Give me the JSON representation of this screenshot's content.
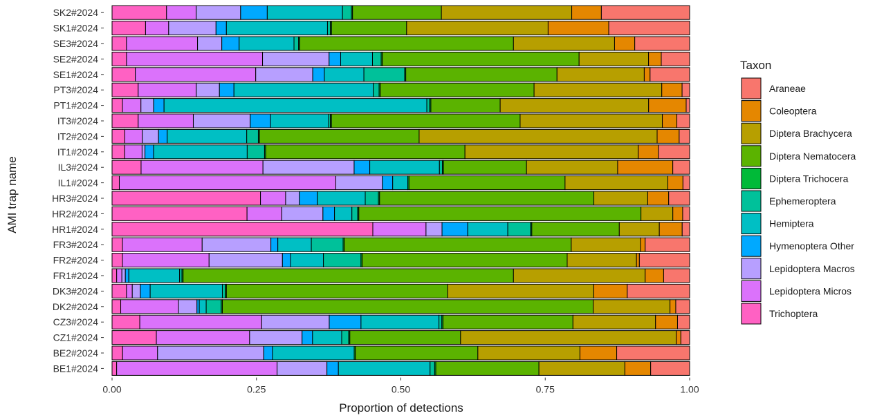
{
  "chart_data": {
    "type": "bar",
    "orientation": "horizontal",
    "stacked": true,
    "xlabel": "Proportion of detections",
    "ylabel": "AMI trap name",
    "xlim": [
      0,
      1
    ],
    "x_ticks": [
      "0.00",
      "0.25",
      "0.50",
      "0.75",
      "1.00"
    ],
    "grid": false,
    "legend": {
      "title": "Taxon",
      "position": "right"
    },
    "categories": [
      "SK2#2024",
      "SK1#2024",
      "SE3#2024",
      "SE2#2024",
      "SE1#2024",
      "PT3#2024",
      "PT1#2024",
      "IT3#2024",
      "IT2#2024",
      "IT1#2024",
      "IL3#2024",
      "IL1#2024",
      "HR3#2024",
      "HR2#2024",
      "HR1#2024",
      "FR3#2024",
      "FR2#2024",
      "FR1#2024",
      "DK3#2024",
      "DK2#2024",
      "CZ3#2024",
      "CZ1#2024",
      "BE2#2024",
      "BE1#2024"
    ],
    "series": [
      {
        "name": "Trichoptera",
        "color": "#FF61C3",
        "values": [
          0.092,
          0.058,
          0.025,
          0.025,
          0.04,
          0.045,
          0.018,
          0.045,
          0.022,
          0.022,
          0.05,
          0.012,
          0.248,
          0.233,
          0.456,
          0.018,
          0.018,
          0.008,
          0.025,
          0.015,
          0.048,
          0.076,
          0.018,
          0.008
        ]
      },
      {
        "name": "Lepidoptera Micros",
        "color": "#DB72FB",
        "values": [
          0.05,
          0.04,
          0.123,
          0.235,
          0.207,
          0.1,
          0.032,
          0.095,
          0.03,
          0.03,
          0.21,
          0.358,
          0.042,
          0.06,
          0.093,
          0.138,
          0.15,
          0.009,
          0.01,
          0.1,
          0.211,
          0.16,
          0.06,
          0.28
        ]
      },
      {
        "name": "Lepidoptera Macros",
        "color": "#B79FFF",
        "values": [
          0.075,
          0.082,
          0.042,
          0.115,
          0.098,
          0.04,
          0.022,
          0.098,
          0.028,
          0.005,
          0.157,
          0.077,
          0.023,
          0.071,
          0.028,
          0.119,
          0.127,
          0.006,
          0.014,
          0.032,
          0.117,
          0.09,
          0.182,
          0.087
        ]
      },
      {
        "name": "Hymenoptera Other",
        "color": "#00A9FF",
        "values": [
          0.045,
          0.018,
          0.03,
          0.02,
          0.02,
          0.025,
          0.018,
          0.035,
          0.015,
          0.015,
          0.027,
          0.017,
          0.03,
          0.02,
          0.045,
          0.012,
          0.014,
          0.006,
          0.017,
          0.004,
          0.055,
          0.018,
          0.015,
          0.02
        ]
      },
      {
        "name": "Hemiptera",
        "color": "#00BFC4",
        "values": [
          0.127,
          0.175,
          0.095,
          0.055,
          0.068,
          0.24,
          0.455,
          0.1,
          0.137,
          0.162,
          0.12,
          0.025,
          0.08,
          0.03,
          0.07,
          0.058,
          0.057,
          0.088,
          0.125,
          0.012,
          0.135,
          0.05,
          0.14,
          0.16
        ]
      },
      {
        "name": "Ephemeroptera",
        "color": "#00C19A",
        "values": [
          0.015,
          0.005,
          0.008,
          0.015,
          0.07,
          0.01,
          0.005,
          0.003,
          0.02,
          0.03,
          0.005,
          0.0,
          0.022,
          0.01,
          0.04,
          0.055,
          0.065,
          0.004,
          0.005,
          0.026,
          0.005,
          0.012,
          0.0,
          0.008
        ]
      },
      {
        "name": "Diptera Trichocera",
        "color": "#00BA38",
        "values": [
          0.002,
          0.002,
          0.002,
          0.002,
          0.002,
          0.002,
          0.002,
          0.002,
          0.002,
          0.002,
          0.002,
          0.002,
          0.002,
          0.002,
          0.002,
          0.002,
          0.002,
          0.002,
          0.002,
          0.002,
          0.002,
          0.002,
          0.002,
          0.002
        ]
      },
      {
        "name": "Diptera Nematocera",
        "color": "#5BB300",
        "values": [
          0.15,
          0.13,
          0.37,
          0.34,
          0.26,
          0.265,
          0.12,
          0.325,
          0.275,
          0.345,
          0.143,
          0.258,
          0.358,
          0.487,
          0.153,
          0.393,
          0.355,
          0.572,
          0.383,
          0.642,
          0.225,
          0.19,
          0.21,
          0.18
        ]
      },
      {
        "name": "Diptera Brachycera",
        "color": "#B79F00",
        "values": [
          0.22,
          0.245,
          0.175,
          0.12,
          0.15,
          0.22,
          0.257,
          0.245,
          0.41,
          0.3,
          0.157,
          0.17,
          0.09,
          0.055,
          0.07,
          0.12,
          0.12,
          0.228,
          0.253,
          0.133,
          0.143,
          0.37,
          0.175,
          0.15
        ]
      },
      {
        "name": "Coleoptera",
        "color": "#E58700",
        "values": [
          0.05,
          0.105,
          0.035,
          0.022,
          0.01,
          0.035,
          0.065,
          0.025,
          0.038,
          0.035,
          0.095,
          0.025,
          0.035,
          0.017,
          0.04,
          0.008,
          0.005,
          0.032,
          0.058,
          0.01,
          0.038,
          0.008,
          0.063,
          0.045
        ]
      },
      {
        "name": "Araneae",
        "color": "#F8766D",
        "values": [
          0.149,
          0.14,
          0.095,
          0.049,
          0.068,
          0.013,
          0.006,
          0.022,
          0.018,
          0.054,
          0.029,
          0.011,
          0.035,
          0.012,
          0.013,
          0.077,
          0.087,
          0.045,
          0.108,
          0.024,
          0.021,
          0.015,
          0.125,
          0.068
        ]
      }
    ]
  }
}
